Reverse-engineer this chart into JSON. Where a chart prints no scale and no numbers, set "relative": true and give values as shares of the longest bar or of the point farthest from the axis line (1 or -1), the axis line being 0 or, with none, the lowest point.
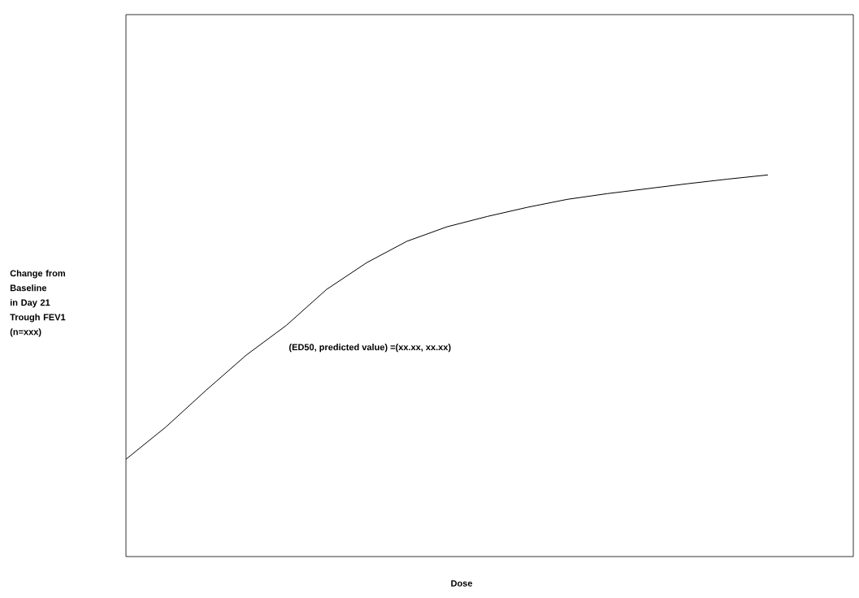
{
  "chart_data": {
    "type": "line",
    "relative": true,
    "xlabel": "Dose",
    "ylabel": "Change from Baseline in Day 21 Trough FEV1 (n=xxx)",
    "annotations": [
      "(ED50, predicted value) =(xx.xx, xx.xx)"
    ],
    "categories": [
      null,
      null,
      null,
      null,
      null,
      null,
      null,
      null,
      null,
      null,
      null,
      null,
      null,
      null,
      null,
      null,
      null
    ],
    "series": [
      {
        "color": "#000000",
        "values": [
          0.255,
          0.34,
          0.436,
          0.528,
          0.606,
          0.7,
          0.77,
          0.826,
          0.864,
          0.891,
          0.915,
          0.936,
          0.951,
          0.964,
          0.977,
          0.989,
          1.0
        ]
      }
    ],
    "marker": "none",
    "line_style": "solid"
  }
}
